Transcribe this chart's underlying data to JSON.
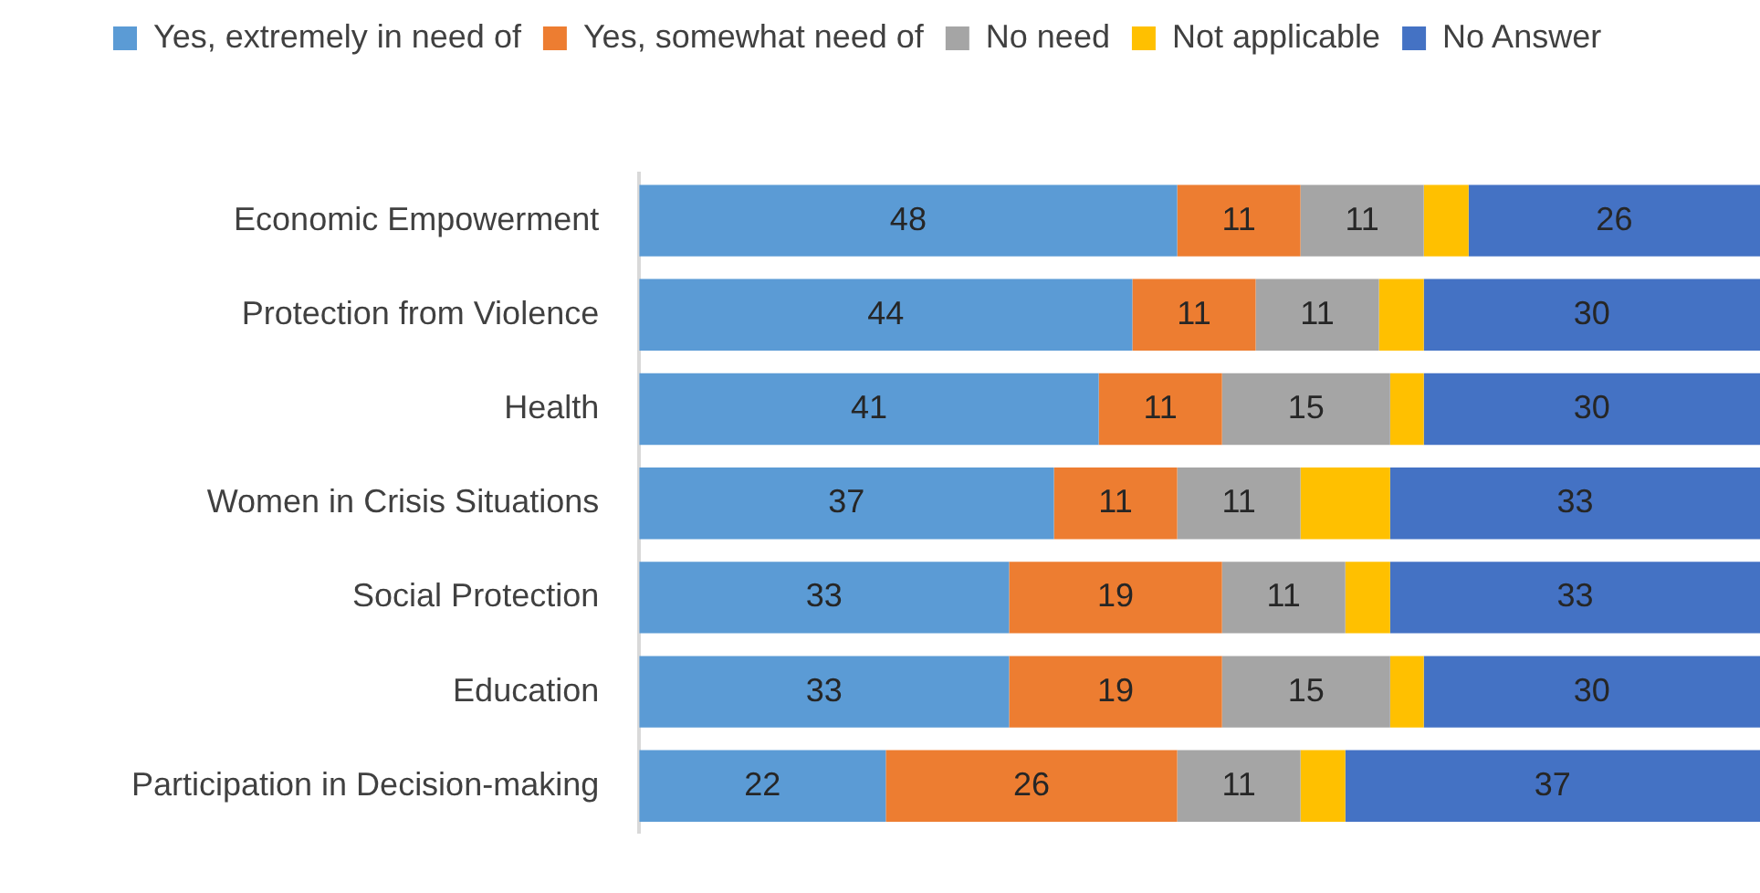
{
  "chart_data": {
    "type": "bar",
    "orientation": "horizontal",
    "stacked": true,
    "categories": [
      "Economic Empowerment",
      "Protection from Violence",
      "Health",
      "Women in Crisis Situations",
      "Social Protection",
      "Education",
      "Participation in Decision-making"
    ],
    "series": [
      {
        "name": "Yes, extremely in need of",
        "color": "#5b9bd5",
        "values": [
          48,
          44,
          41,
          37,
          33,
          33,
          22
        ],
        "value_labels": [
          "48",
          "44",
          "41",
          "37",
          "33",
          "33",
          "22"
        ]
      },
      {
        "name": "Yes, somewhat need of",
        "color": "#ed7d31",
        "values": [
          11,
          11,
          11,
          11,
          19,
          19,
          26
        ],
        "value_labels": [
          "11",
          "11",
          "11",
          "11",
          "19",
          "19",
          "26"
        ]
      },
      {
        "name": "No need",
        "color": "#a5a5a5",
        "values": [
          11,
          11,
          15,
          11,
          11,
          15,
          11
        ],
        "value_labels": [
          "11",
          "11",
          "15",
          "11",
          "11",
          "15",
          "11"
        ]
      },
      {
        "name": "Not applicable",
        "color": "#ffc000",
        "values": [
          4,
          4,
          3,
          8,
          4,
          3,
          4
        ],
        "value_labels": [
          null,
          null,
          null,
          null,
          null,
          null,
          null
        ]
      },
      {
        "name": "No Answer",
        "color": "#4472c4",
        "values": [
          26,
          30,
          30,
          33,
          33,
          30,
          37
        ],
        "value_labels": [
          "26",
          "30",
          "30",
          "33",
          "33",
          "30",
          "37"
        ]
      }
    ],
    "xlim": [
      0,
      100
    ],
    "tick_labels": "y",
    "grid": false,
    "legend": "top left"
  }
}
